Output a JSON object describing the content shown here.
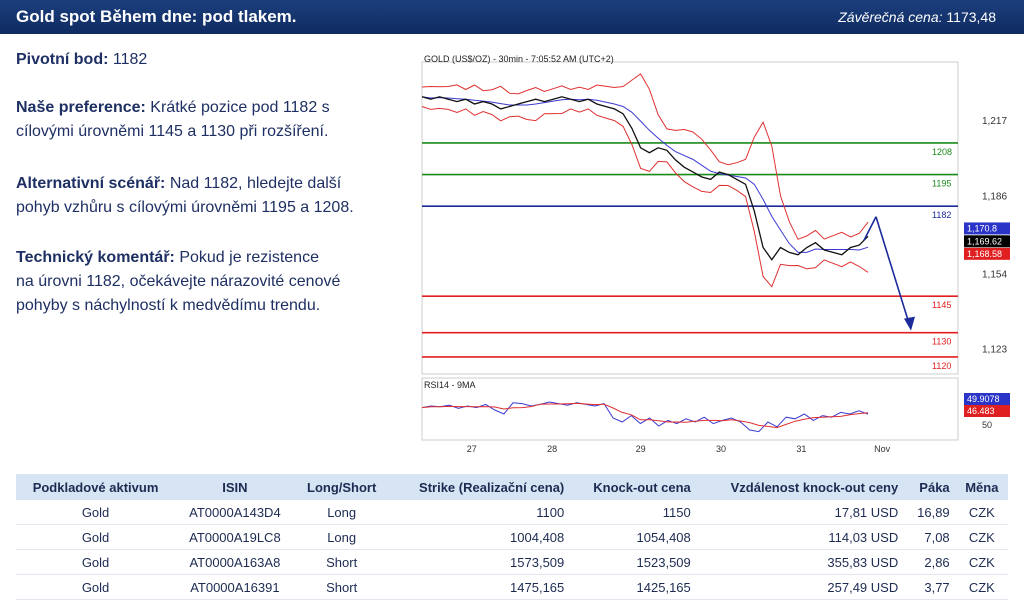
{
  "header": {
    "title": "Gold spot Během dne: pod tlakem.",
    "close_label": "Závěrečná cena:",
    "close_value": "1173,48"
  },
  "analysis": {
    "pivot_label": "Pivotní bod:",
    "pivot_value": "1182",
    "preference_label": "Naše preference:",
    "preference_text1": "Krátké pozice pod 1182 s",
    "preference_text2": "cílovými úrovněmi 1145 a 1130 při  rozšíření.",
    "alternative_label": "Alternativní scénář:",
    "alternative_text1": "Nad 1182, hledejte další",
    "alternative_text2": "pohyb vzhůru s cílovými úrovněmi 1195 a 1208.",
    "technical_label": "Technický komentář:",
    "technical_text1": "Pokud je rezistence",
    "technical_text2": "na úrovni 1182, očekávejte nárazovité cenové",
    "technical_text3": "pohyby s náchylností k medvědímu trendu."
  },
  "chart_data": {
    "type": "line",
    "title": "GOLD (US$/OZ) - 30min - 7:05:52 AM (UTC+2)",
    "x_ticks": [
      "27",
      "28",
      "29",
      "30",
      "31",
      "Nov"
    ],
    "y_ticks": [
      "1,217",
      "1,186",
      "1,154",
      "1,123"
    ],
    "ylim": [
      1113,
      1238
    ],
    "price": [
      1227,
      1226,
      1227,
      1226,
      1225,
      1226,
      1224,
      1225,
      1224,
      1222,
      1223,
      1224,
      1225,
      1226,
      1225,
      1226,
      1227,
      1226,
      1225,
      1226,
      1224,
      1223,
      1222,
      1220,
      1214,
      1206,
      1204,
      1206,
      1205,
      1201,
      1198,
      1196,
      1194,
      1193,
      1196,
      1195,
      1193,
      1191,
      1180,
      1165,
      1160,
      1165,
      1163,
      1162,
      1165,
      1167,
      1164,
      1163,
      1162,
      1165,
      1166,
      1169.62
    ],
    "levels": [
      {
        "label": "1208",
        "value": 1208,
        "color": "#1a8a1a"
      },
      {
        "label": "1195",
        "value": 1195,
        "color": "#1a8a1a"
      },
      {
        "label": "1182",
        "value": 1182,
        "color": "#1c2a9a"
      },
      {
        "label": "1145",
        "value": 1145,
        "color": "#e02020"
      },
      {
        "label": "1130",
        "value": 1130,
        "color": "#e02020"
      },
      {
        "label": "1120",
        "value": 1120,
        "color": "#e02020"
      }
    ],
    "price_tags": [
      {
        "label": "1,170.8",
        "value": 1170.8,
        "color": "#2a35c8"
      },
      {
        "label": "1,169.62",
        "value": 1169.62,
        "color": "#000000"
      },
      {
        "label": "1,168.58",
        "value": 1168.58,
        "color": "#e02020"
      }
    ],
    "rsi": {
      "title": "RSI14 - 9MA",
      "y_tick": "50",
      "tags": [
        {
          "label": "49.9078",
          "value": 49.9078,
          "color": "#2a35c8"
        },
        {
          "label": "46.483",
          "value": 46.483,
          "color": "#e02020"
        }
      ],
      "values": [
        58,
        60,
        59,
        61,
        57,
        60,
        58,
        62,
        55,
        50,
        64,
        63,
        60,
        62,
        65,
        63,
        61,
        64,
        62,
        60,
        63,
        45,
        40,
        48,
        38,
        45,
        35,
        42,
        38,
        44,
        40,
        46,
        38,
        42,
        45,
        40,
        30,
        28,
        40,
        34,
        46,
        44,
        50,
        42,
        48,
        46,
        52,
        50,
        54,
        49.9
      ]
    },
    "projection": {
      "from": 1176,
      "to": 1130
    }
  },
  "table": {
    "headers": [
      "Podkladové aktivum",
      "ISIN",
      "Long/Short",
      "Strike (Realizační cena)",
      "Knock-out cena",
      "Vzdálenost knock-out ceny",
      "Páka",
      "Měna"
    ],
    "rows": [
      [
        "Gold",
        "AT0000A143D4",
        "Long",
        "1100",
        "1150",
        "17,81 USD",
        "16,89",
        "CZK"
      ],
      [
        "Gold",
        "AT0000A19LC8",
        "Long",
        "1004,408",
        "1054,408",
        "114,03 USD",
        "7,08",
        "CZK"
      ],
      [
        "Gold",
        "AT0000A163A8",
        "Short",
        "1573,509",
        "1523,509",
        "355,83 USD",
        "2,86",
        "CZK"
      ],
      [
        "Gold",
        "AT0000A16391",
        "Short",
        "1475,165",
        "1425,165",
        "257,49 USD",
        "3,77",
        "CZK"
      ]
    ]
  }
}
